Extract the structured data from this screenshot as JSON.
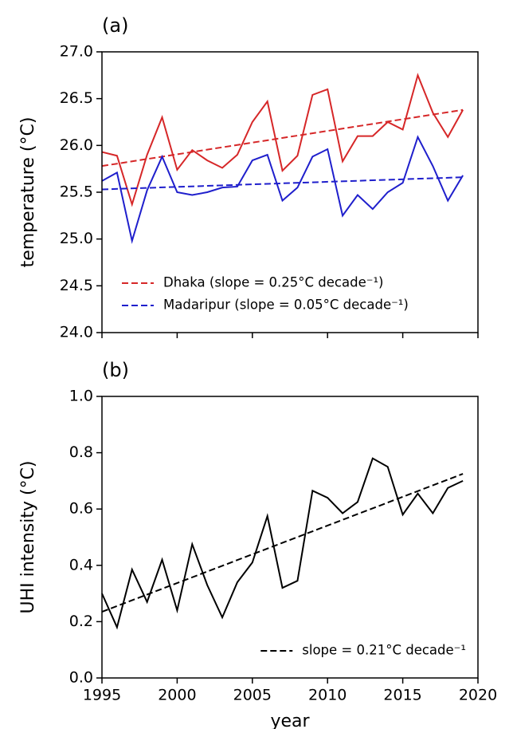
{
  "chart_data": [
    {
      "type": "line",
      "panel_label": "(a)",
      "ylabel": "temperature (°C)",
      "x": [
        1995,
        1996,
        1997,
        1998,
        1999,
        2000,
        2001,
        2002,
        2003,
        2004,
        2005,
        2006,
        2007,
        2008,
        2009,
        2010,
        2011,
        2012,
        2013,
        2014,
        2015,
        2016,
        2017,
        2018,
        2019
      ],
      "series": [
        {
          "name": "Dhaka (slope = 0.25°C decade⁻¹)",
          "color": "#d62728",
          "values": [
            25.93,
            25.89,
            25.37,
            25.9,
            26.3,
            25.74,
            25.95,
            25.84,
            25.76,
            25.9,
            26.25,
            26.47,
            25.73,
            25.89,
            26.54,
            26.6,
            25.83,
            26.1,
            26.1,
            26.25,
            26.17,
            26.75,
            26.35,
            26.09,
            26.38
          ],
          "trend": {
            "x": [
              1995,
              2019
            ],
            "values": [
              25.78,
              26.38
            ]
          }
        },
        {
          "name": "Madaripur (slope = 0.05°C decade⁻¹)",
          "color": "#1f1fcc",
          "values": [
            25.62,
            25.71,
            24.98,
            25.52,
            25.88,
            25.5,
            25.47,
            25.5,
            25.55,
            25.56,
            25.84,
            25.9,
            25.41,
            25.55,
            25.88,
            25.96,
            25.25,
            25.47,
            25.32,
            25.5,
            25.6,
            26.09,
            25.78,
            25.41,
            25.68
          ],
          "trend": {
            "x": [
              1995,
              2019
            ],
            "values": [
              25.53,
              25.66
            ]
          }
        }
      ],
      "xlim": [
        1995,
        2020
      ],
      "xticks": [
        1995,
        2000,
        2005,
        2010,
        2015,
        2020
      ],
      "xtick_labels": false,
      "ylim": [
        24.0,
        27.0
      ],
      "yticks": [
        {
          "value": 24.0,
          "label": "24.0"
        },
        24.5,
        {
          "value": 25.0,
          "label": "25.0"
        },
        25.5,
        {
          "value": 26.0,
          "label": "26.0"
        },
        26.5,
        {
          "value": 27.0,
          "label": "27.0"
        }
      ],
      "legend": "lower left"
    },
    {
      "type": "line",
      "panel_label": "(b)",
      "ylabel": "UHI intensity (°C)",
      "xlabel": "year",
      "x": [
        1995,
        1996,
        1997,
        1998,
        1999,
        2000,
        2001,
        2002,
        2003,
        2004,
        2005,
        2006,
        2007,
        2008,
        2009,
        2010,
        2011,
        2012,
        2013,
        2014,
        2015,
        2016,
        2017,
        2018,
        2019
      ],
      "series": [
        {
          "name": "slope = 0.21°C decade⁻¹",
          "color": "#000000",
          "values": [
            0.3,
            0.18,
            0.385,
            0.27,
            0.42,
            0.24,
            0.475,
            0.33,
            0.215,
            0.34,
            0.41,
            0.575,
            0.32,
            0.345,
            0.665,
            0.64,
            0.585,
            0.625,
            0.78,
            0.75,
            0.58,
            0.655,
            0.585,
            0.675,
            0.7
          ],
          "trend": {
            "x": [
              1995,
              2019
            ],
            "values": [
              0.235,
              0.725
            ]
          }
        }
      ],
      "xlim": [
        1995,
        2020
      ],
      "xticks": [
        1995,
        2000,
        2005,
        2010,
        2015,
        2020
      ],
      "xtick_labels": true,
      "ylim": [
        0.0,
        1.0
      ],
      "yticks": [
        {
          "value": 0.0,
          "label": "0.0"
        },
        0.2,
        0.4,
        0.6,
        0.8,
        {
          "value": 1.0,
          "label": "1.0"
        }
      ],
      "legend": "lower right"
    }
  ]
}
